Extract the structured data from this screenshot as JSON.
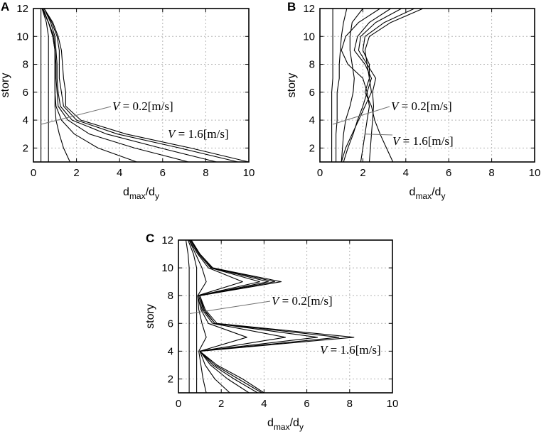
{
  "chart_data": [
    {
      "type": "line",
      "panel_label": "A",
      "xlabel": {
        "main": "d",
        "sub1": "max",
        "slash": "/d",
        "sub2": "y"
      },
      "ylabel": "story",
      "xlim": [
        0,
        10
      ],
      "ylim": [
        1,
        12
      ],
      "xticks": [
        0,
        2,
        4,
        6,
        8,
        10
      ],
      "yticks": [
        2,
        4,
        6,
        8,
        10,
        12
      ],
      "grid": true,
      "y": [
        1,
        2,
        3,
        4,
        5,
        6,
        7,
        8,
        9,
        10,
        11,
        12
      ],
      "series": [
        {
          "values": [
            0.35,
            0.35,
            0.35,
            0.35,
            0.35,
            0.35,
            0.35,
            0.35,
            0.35,
            0.35,
            0.35,
            0.35
          ]
        },
        {
          "values": [
            0.7,
            0.7,
            0.7,
            0.7,
            0.7,
            0.7,
            0.7,
            0.7,
            0.7,
            0.7,
            0.6,
            0.4
          ]
        },
        {
          "values": [
            1.7,
            1.4,
            1.2,
            1.05,
            1.0,
            1.0,
            1.0,
            1.0,
            1.0,
            0.9,
            0.7,
            0.4
          ]
        },
        {
          "values": [
            4.8,
            3.0,
            1.9,
            1.3,
            1.05,
            1.0,
            1.0,
            1.0,
            1.0,
            0.9,
            0.7,
            0.4
          ]
        },
        {
          "values": [
            7.2,
            4.7,
            2.6,
            1.6,
            1.15,
            1.1,
            1.05,
            1.05,
            1.0,
            0.95,
            0.7,
            0.45
          ]
        },
        {
          "values": [
            8.5,
            5.9,
            3.4,
            1.8,
            1.25,
            1.15,
            1.1,
            1.1,
            1.05,
            1.0,
            0.8,
            0.5
          ]
        },
        {
          "values": [
            9.5,
            6.8,
            3.9,
            2.0,
            1.4,
            1.3,
            1.2,
            1.2,
            1.2,
            1.1,
            0.85,
            0.5
          ]
        },
        {
          "values": [
            10.0,
            7.3,
            4.3,
            2.2,
            1.5,
            1.5,
            1.4,
            1.35,
            1.3,
            1.15,
            0.9,
            0.5
          ]
        }
      ],
      "annotations": [
        {
          "var": "V",
          "rest": " = 0.2[m/s]"
        },
        {
          "var": "V",
          "rest": " = 1.6[m/s]"
        }
      ]
    },
    {
      "type": "line",
      "panel_label": "B",
      "xlabel": {
        "main": "d",
        "sub1": "max",
        "slash": "/d",
        "sub2": "y"
      },
      "ylabel": "story",
      "xlim": [
        0,
        10
      ],
      "ylim": [
        1,
        12
      ],
      "xticks": [
        0,
        2,
        4,
        6,
        8,
        10
      ],
      "yticks": [
        2,
        4,
        6,
        8,
        10,
        12
      ],
      "grid": true,
      "y": [
        1,
        2,
        3,
        4,
        5,
        6,
        7,
        8,
        9,
        10,
        11,
        12
      ],
      "series": [
        {
          "values": [
            0.55,
            0.55,
            0.55,
            0.55,
            0.55,
            0.55,
            0.6,
            0.6,
            0.6,
            0.6,
            0.6,
            0.6
          ]
        },
        {
          "values": [
            0.75,
            0.75,
            0.75,
            0.8,
            0.8,
            0.8,
            0.9,
            0.9,
            0.95,
            1.0,
            1.1,
            1.25
          ]
        },
        {
          "values": [
            1.0,
            1.05,
            1.1,
            1.2,
            1.4,
            1.55,
            1.6,
            1.5,
            1.4,
            1.4,
            1.5,
            2.0
          ]
        },
        {
          "values": [
            1.1,
            1.3,
            1.55,
            1.75,
            2.0,
            2.2,
            2.0,
            1.3,
            1.0,
            1.2,
            1.8,
            2.8
          ]
        },
        {
          "values": [
            1.9,
            2.0,
            2.1,
            2.2,
            2.3,
            2.2,
            2.4,
            2.1,
            1.6,
            1.75,
            2.3,
            3.3
          ]
        },
        {
          "values": [
            2.3,
            2.35,
            2.4,
            2.45,
            2.5,
            2.45,
            2.6,
            2.2,
            1.8,
            1.9,
            2.6,
            3.8
          ]
        },
        {
          "values": [
            3.4,
            3.1,
            2.8,
            2.55,
            2.4,
            2.1,
            2.3,
            2.3,
            2.0,
            2.1,
            3.0,
            4.4
          ]
        },
        {
          "values": [
            1.0,
            1.2,
            1.5,
            1.8,
            2.1,
            2.4,
            2.3,
            2.2,
            2.1,
            2.3,
            3.3,
            4.8
          ]
        }
      ],
      "annotations": [
        {
          "var": "V",
          "rest": " = 0.2[m/s]"
        },
        {
          "var": "V",
          "rest": " = 1.6[m/s]"
        }
      ]
    },
    {
      "type": "line",
      "panel_label": "C",
      "xlabel": {
        "main": "d",
        "sub1": "max",
        "slash": "/d",
        "sub2": "y"
      },
      "ylabel": "story",
      "xlim": [
        0,
        10
      ],
      "ylim": [
        1,
        12
      ],
      "xticks": [
        0,
        2,
        4,
        6,
        8,
        10
      ],
      "yticks": [
        2,
        4,
        6,
        8,
        10,
        12
      ],
      "grid": true,
      "y": [
        1,
        2,
        3,
        4,
        5,
        6,
        7,
        8,
        9,
        10,
        11,
        12
      ],
      "series": [
        {
          "values": [
            0.5,
            0.5,
            0.5,
            0.5,
            0.5,
            0.5,
            0.5,
            0.5,
            0.5,
            0.5,
            0.45,
            0.35
          ]
        },
        {
          "values": [
            0.85,
            0.85,
            0.85,
            0.85,
            0.85,
            0.85,
            0.85,
            0.85,
            0.85,
            0.85,
            0.7,
            0.45
          ]
        },
        {
          "values": [
            1.3,
            1.15,
            1.05,
            0.95,
            1.3,
            1.1,
            0.95,
            0.9,
            1.3,
            1.1,
            0.8,
            0.5
          ]
        },
        {
          "values": [
            2.4,
            1.7,
            1.25,
            1.0,
            3.2,
            1.4,
            1.05,
            0.9,
            3.0,
            1.4,
            0.9,
            0.5
          ]
        },
        {
          "values": [
            3.3,
            2.3,
            1.5,
            1.0,
            5.0,
            1.6,
            1.1,
            0.95,
            3.8,
            1.5,
            0.95,
            0.55
          ]
        },
        {
          "values": [
            3.7,
            2.6,
            1.6,
            1.0,
            6.5,
            1.7,
            1.15,
            1.0,
            4.2,
            1.55,
            1.0,
            0.55
          ]
        },
        {
          "values": [
            3.9,
            2.8,
            1.7,
            1.0,
            7.5,
            1.7,
            1.2,
            1.0,
            4.5,
            1.6,
            1.0,
            0.6
          ]
        },
        {
          "values": [
            4.0,
            3.0,
            1.8,
            1.0,
            8.2,
            1.8,
            1.25,
            1.0,
            4.8,
            1.6,
            1.0,
            0.6
          ]
        }
      ],
      "annotations": [
        {
          "var": "V",
          "rest": " = 0.2[m/s]"
        },
        {
          "var": "V",
          "rest": " = 1.6[m/s]"
        }
      ]
    }
  ]
}
